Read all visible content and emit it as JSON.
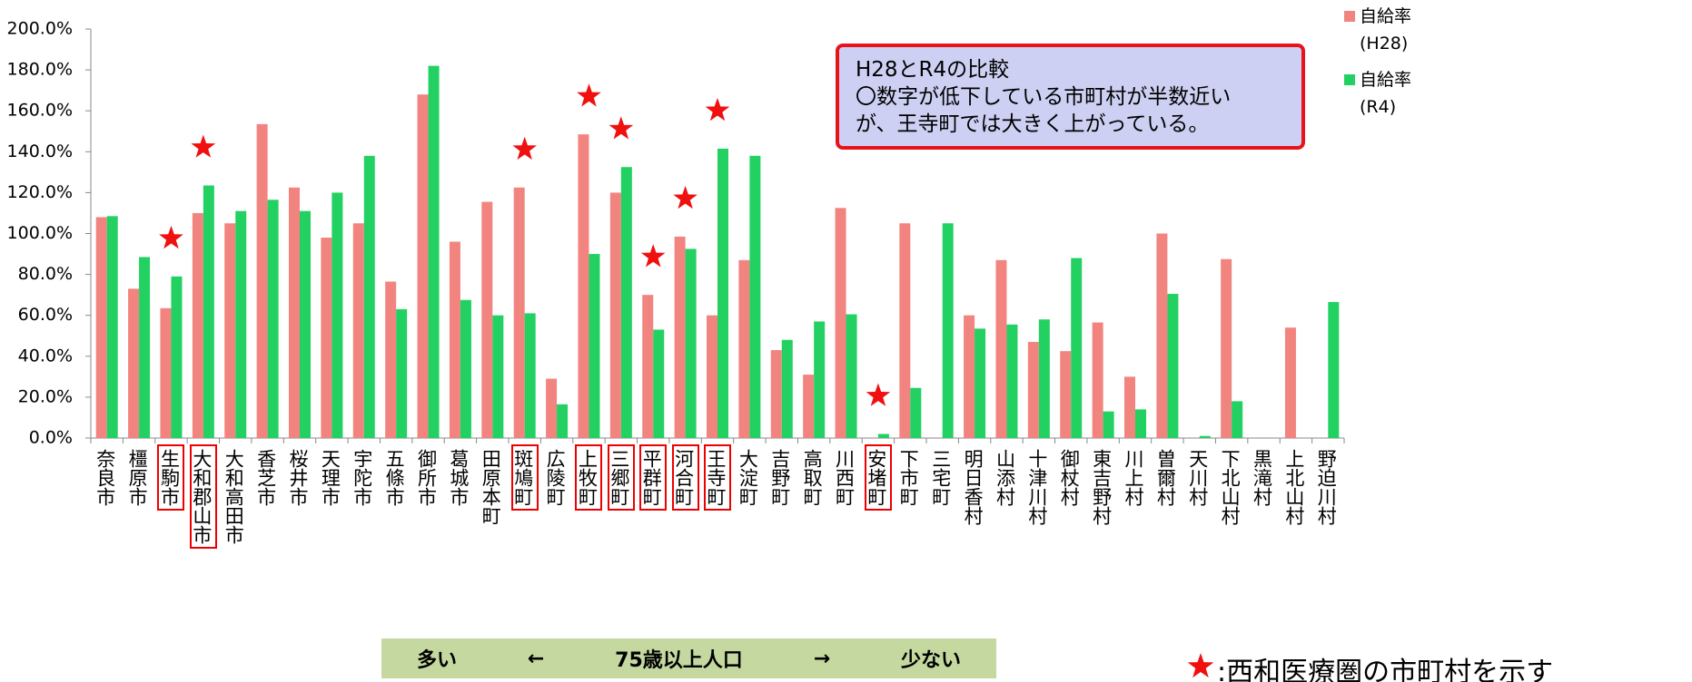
{
  "chart_data": {
    "type": "bar",
    "categories": [
      "奈良市",
      "橿原市",
      "生駒市",
      "大和郡山市",
      "大和高田市",
      "香芝市",
      "桜井市",
      "天理市",
      "宇陀市",
      "五條市",
      "御所市",
      "葛城市",
      "田原本町",
      "斑鳩町",
      "広陵町",
      "上牧町",
      "三郷町",
      "平群町",
      "河合町",
      "王寺町",
      "大淀町",
      "吉野町",
      "高取町",
      "川西町",
      "安堵町",
      "下市町",
      "三宅町",
      "明日香村",
      "山添村",
      "十津川村",
      "御杖村",
      "東吉野村",
      "川上村",
      "曽爾村",
      "天川村",
      "下北山村",
      "黒滝村",
      "上北山村",
      "野迫川村"
    ],
    "series": [
      {
        "name": "自給率(H28)",
        "color": "#f2847f",
        "values": [
          108,
          73,
          63.5,
          110,
          105,
          153.5,
          122.5,
          98,
          105,
          76.5,
          168,
          96,
          115.5,
          122.5,
          29,
          148.5,
          120,
          70,
          98.5,
          60,
          87,
          43,
          31,
          112.5,
          0,
          105,
          0,
          60,
          87,
          47,
          42.5,
          56.5,
          30,
          100,
          0,
          87.5,
          0,
          54,
          0
        ]
      },
      {
        "name": "自給率(R4)",
        "color": "#22d162",
        "values": [
          108.5,
          88.5,
          79,
          123.5,
          111,
          116.5,
          111,
          120,
          138,
          63,
          182,
          67.5,
          60,
          61,
          16.5,
          90,
          132.5,
          53,
          92.5,
          141.5,
          138,
          48,
          57,
          60.5,
          2,
          24.5,
          105,
          53.5,
          55.5,
          58,
          88,
          13,
          14,
          70.5,
          1,
          18,
          0,
          0,
          66.5
        ]
      }
    ],
    "highlighted": [
      2,
      3,
      13,
      15,
      16,
      17,
      18,
      19,
      24
    ],
    "ylim": [
      0,
      200
    ],
    "yticks": [
      {
        "value": 0,
        "label": "0.0%"
      },
      {
        "value": 20,
        "label": "20.0%"
      },
      {
        "value": 40,
        "label": "40.0%"
      },
      {
        "value": 60,
        "label": "60.0%"
      },
      {
        "value": 80,
        "label": "80.0%"
      },
      {
        "value": 100,
        "label": "100.0%"
      },
      {
        "value": 120,
        "label": "120.0%"
      },
      {
        "value": 140,
        "label": "140.0%"
      },
      {
        "value": 160,
        "label": "160.0%"
      },
      {
        "value": 180,
        "label": "180.0%"
      },
      {
        "value": 200,
        "label": "200.0%"
      }
    ],
    "annotation": [
      "H28とR4の比較",
      "〇数字が低下している市町村が半数近い",
      "が、王寺町では大きく上がっている。"
    ],
    "axis_band": [
      "多い",
      "←",
      "75歳以上人口",
      "→",
      "少ない"
    ],
    "star_note": ":西和医療圏の市町村を示す"
  }
}
